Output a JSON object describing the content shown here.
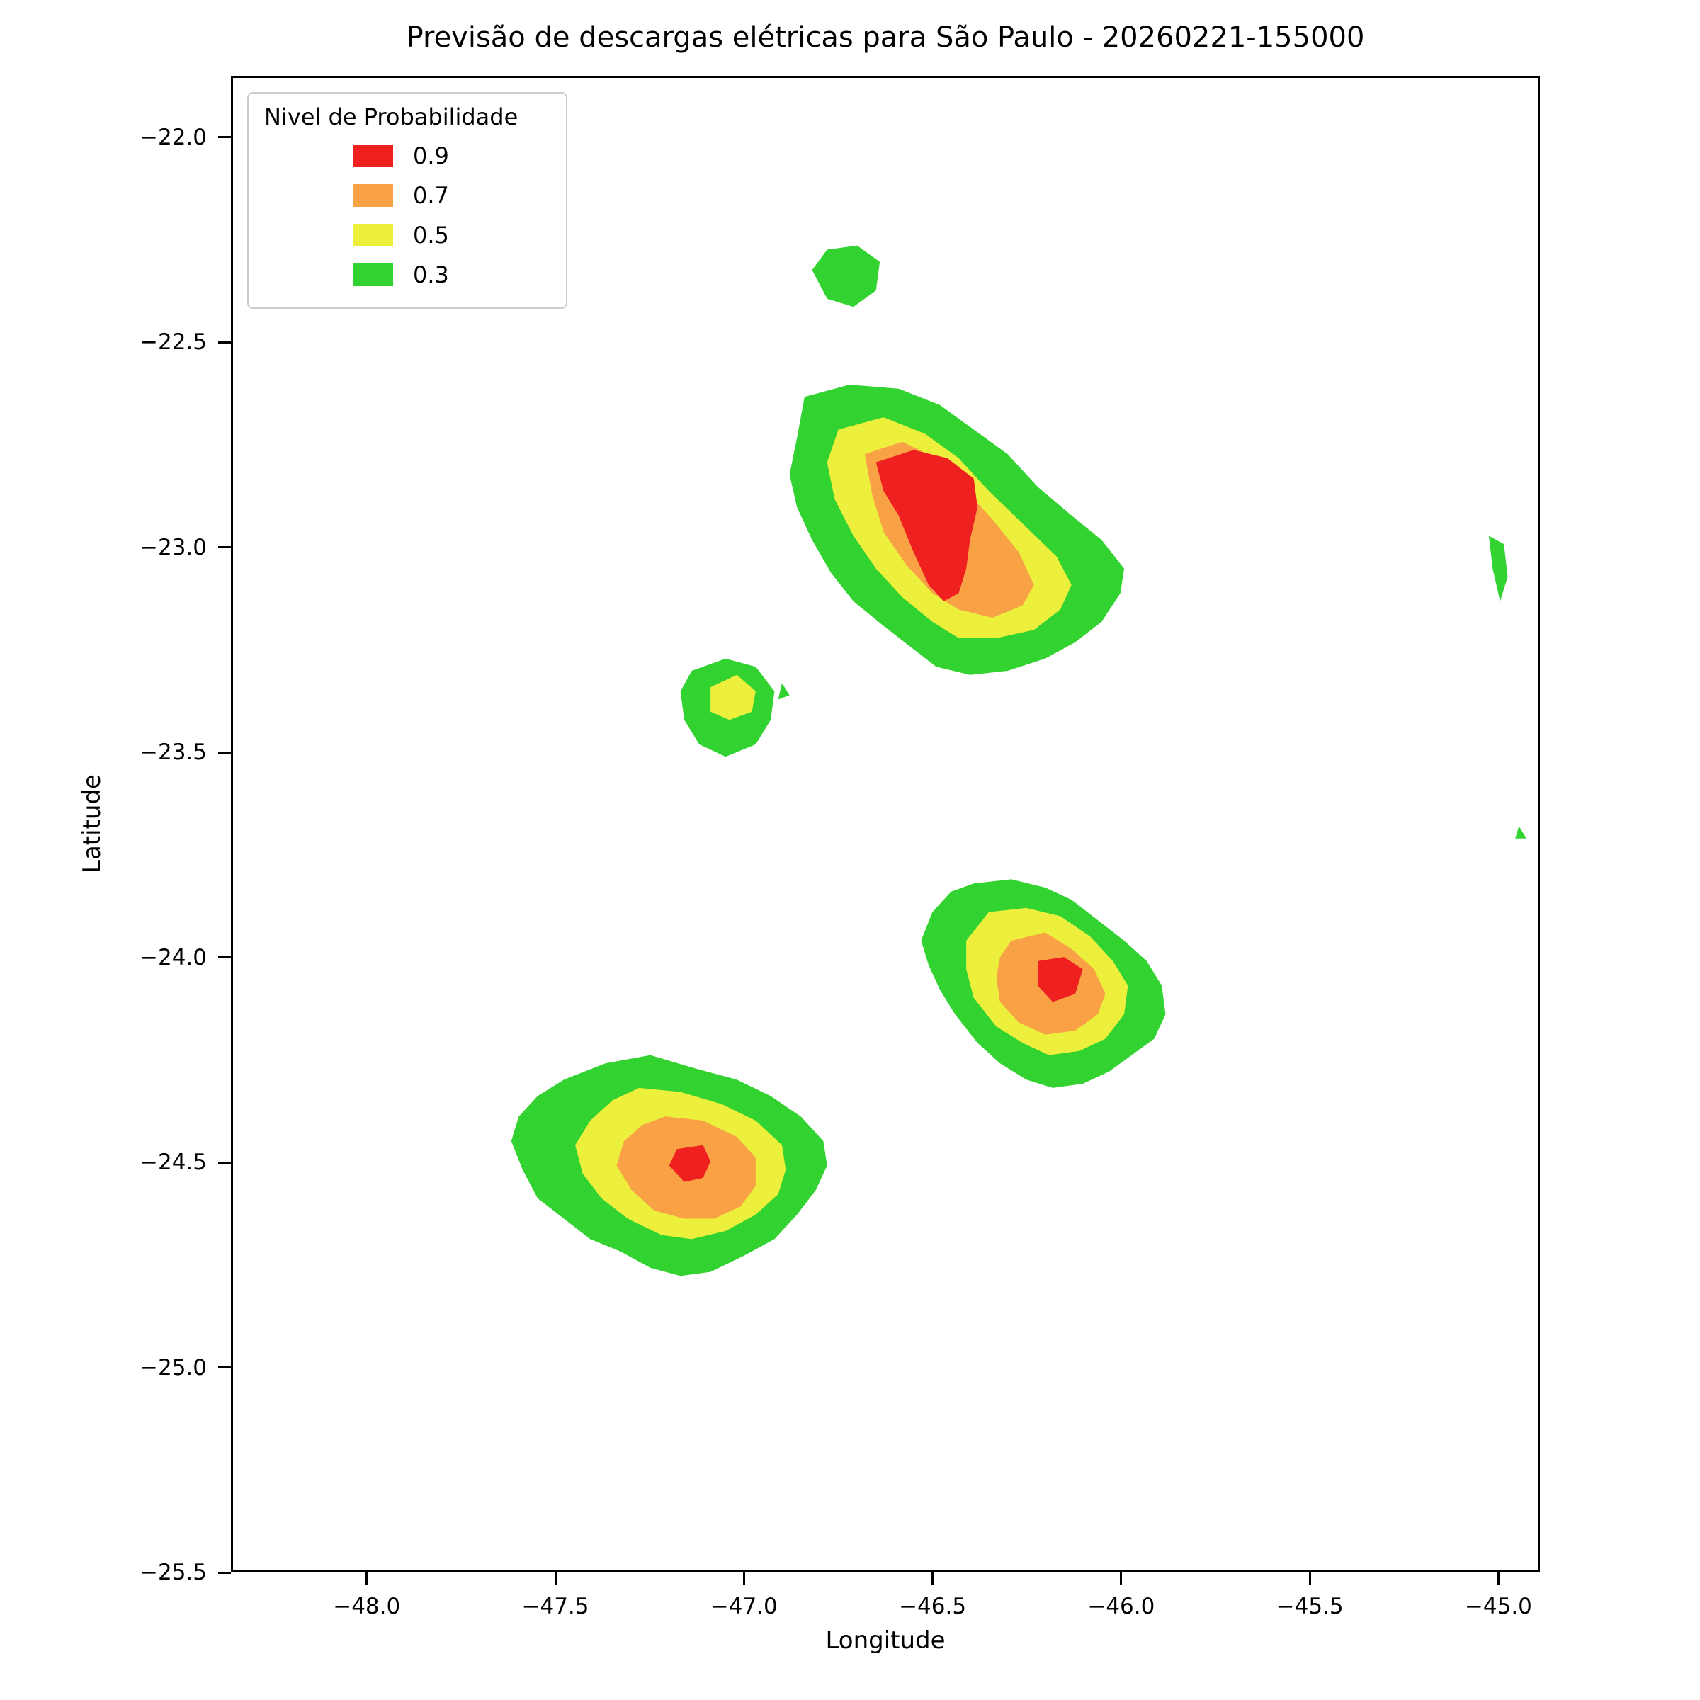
{
  "chart_data": {
    "type": "filled_contour_map",
    "title": "Previsão de descargas elétricas para São Paulo - 20260221-155000",
    "xlabel": "Longitude",
    "ylabel": "Latitude",
    "xlim": [
      -48.36,
      -44.89
    ],
    "ylim": [
      -25.5,
      -21.85
    ],
    "xticks": [
      -48.0,
      -47.5,
      -47.0,
      -46.5,
      -46.0,
      -45.5,
      -45.0
    ],
    "xtick_labels": [
      "−48.0",
      "−47.5",
      "−47.0",
      "−46.5",
      "−46.0",
      "−45.5",
      "−45.0"
    ],
    "yticks": [
      -22.0,
      -22.5,
      -23.0,
      -23.5,
      -24.0,
      -24.5,
      -25.0,
      -25.5
    ],
    "ytick_labels": [
      "−22.0",
      "−22.5",
      "−23.0",
      "−23.5",
      "−24.0",
      "−24.5",
      "−25.0",
      "−25.5"
    ],
    "grid": false,
    "legend": {
      "title": "Nivel de Probabilidade",
      "position": "upper left",
      "entries": [
        {
          "label": "0.9",
          "level": "0.9"
        },
        {
          "label": "0.7",
          "level": "0.7"
        },
        {
          "label": "0.5",
          "level": "0.5"
        },
        {
          "label": "0.3",
          "level": "0.3"
        }
      ]
    },
    "level_colors": {
      "0.9": "#ee2020",
      "0.7": "#f8a145",
      "0.5": "#ecf03c",
      "0.3": "#32d330"
    },
    "regions": [
      {
        "name": "north-small-cell",
        "level": "0.3",
        "points": [
          [
            -46.82,
            -22.32
          ],
          [
            -46.78,
            -22.27
          ],
          [
            -46.7,
            -22.26
          ],
          [
            -46.64,
            -22.3
          ],
          [
            -46.65,
            -22.37
          ],
          [
            -46.71,
            -22.41
          ],
          [
            -46.78,
            -22.39
          ]
        ]
      },
      {
        "name": "main-cell",
        "level": "0.3",
        "points": [
          [
            -46.84,
            -22.63
          ],
          [
            -46.72,
            -22.6
          ],
          [
            -46.59,
            -22.61
          ],
          [
            -46.48,
            -22.65
          ],
          [
            -46.39,
            -22.71
          ],
          [
            -46.3,
            -22.77
          ],
          [
            -46.22,
            -22.85
          ],
          [
            -46.13,
            -22.92
          ],
          [
            -46.05,
            -22.98
          ],
          [
            -45.99,
            -23.05
          ],
          [
            -46.0,
            -23.11
          ],
          [
            -46.05,
            -23.18
          ],
          [
            -46.12,
            -23.23
          ],
          [
            -46.2,
            -23.27
          ],
          [
            -46.3,
            -23.3
          ],
          [
            -46.4,
            -23.31
          ],
          [
            -46.49,
            -23.29
          ],
          [
            -46.56,
            -23.24
          ],
          [
            -46.63,
            -23.19
          ],
          [
            -46.71,
            -23.13
          ],
          [
            -46.77,
            -23.06
          ],
          [
            -46.82,
            -22.98
          ],
          [
            -46.86,
            -22.9
          ],
          [
            -46.88,
            -22.82
          ],
          [
            -46.86,
            -22.73
          ]
        ]
      },
      {
        "name": "main-cell",
        "level": "0.5",
        "points": [
          [
            -46.75,
            -22.71
          ],
          [
            -46.63,
            -22.68
          ],
          [
            -46.52,
            -22.72
          ],
          [
            -46.43,
            -22.78
          ],
          [
            -46.35,
            -22.86
          ],
          [
            -46.26,
            -22.94
          ],
          [
            -46.17,
            -23.02
          ],
          [
            -46.13,
            -23.09
          ],
          [
            -46.16,
            -23.15
          ],
          [
            -46.23,
            -23.2
          ],
          [
            -46.33,
            -23.22
          ],
          [
            -46.43,
            -23.22
          ],
          [
            -46.5,
            -23.18
          ],
          [
            -46.58,
            -23.12
          ],
          [
            -46.65,
            -23.05
          ],
          [
            -46.71,
            -22.97
          ],
          [
            -46.76,
            -22.88
          ],
          [
            -46.78,
            -22.79
          ]
        ]
      },
      {
        "name": "main-cell",
        "level": "0.7",
        "points": [
          [
            -46.68,
            -22.77
          ],
          [
            -46.58,
            -22.74
          ],
          [
            -46.49,
            -22.78
          ],
          [
            -46.41,
            -22.86
          ],
          [
            -46.34,
            -22.93
          ],
          [
            -46.27,
            -23.01
          ],
          [
            -46.23,
            -23.09
          ],
          [
            -46.26,
            -23.14
          ],
          [
            -46.34,
            -23.17
          ],
          [
            -46.43,
            -23.15
          ],
          [
            -46.5,
            -23.11
          ],
          [
            -46.57,
            -23.04
          ],
          [
            -46.63,
            -22.96
          ],
          [
            -46.66,
            -22.87
          ]
        ]
      },
      {
        "name": "main-cell",
        "level": "0.9",
        "points": [
          [
            -46.65,
            -22.79
          ],
          [
            -46.55,
            -22.76
          ],
          [
            -46.46,
            -22.78
          ],
          [
            -46.39,
            -22.83
          ],
          [
            -46.38,
            -22.9
          ],
          [
            -46.4,
            -22.98
          ],
          [
            -46.41,
            -23.05
          ],
          [
            -46.43,
            -23.11
          ],
          [
            -46.47,
            -23.13
          ],
          [
            -46.51,
            -23.09
          ],
          [
            -46.55,
            -23.01
          ],
          [
            -46.59,
            -22.92
          ],
          [
            -46.63,
            -22.86
          ]
        ]
      },
      {
        "name": "west-small-cell",
        "level": "0.3",
        "points": [
          [
            -47.14,
            -23.3
          ],
          [
            -47.05,
            -23.27
          ],
          [
            -46.97,
            -23.29
          ],
          [
            -46.92,
            -23.35
          ],
          [
            -46.93,
            -23.42
          ],
          [
            -46.97,
            -23.48
          ],
          [
            -47.05,
            -23.51
          ],
          [
            -47.12,
            -23.48
          ],
          [
            -47.16,
            -23.42
          ],
          [
            -47.17,
            -23.35
          ]
        ]
      },
      {
        "name": "west-small-cell",
        "level": "0.5",
        "points": [
          [
            -47.09,
            -23.34
          ],
          [
            -47.02,
            -23.31
          ],
          [
            -46.97,
            -23.35
          ],
          [
            -46.98,
            -23.4
          ],
          [
            -47.04,
            -23.42
          ],
          [
            -47.09,
            -23.4
          ]
        ]
      },
      {
        "name": "west-speck",
        "level": "0.3",
        "points": [
          [
            -46.9,
            -23.33
          ],
          [
            -46.88,
            -23.36
          ],
          [
            -46.91,
            -23.37
          ]
        ]
      },
      {
        "name": "east-sliver",
        "level": "0.3",
        "points": [
          [
            -45.02,
            -22.97
          ],
          [
            -44.98,
            -22.99
          ],
          [
            -44.97,
            -23.07
          ],
          [
            -44.99,
            -23.13
          ],
          [
            -45.01,
            -23.05
          ]
        ]
      },
      {
        "name": "east-speck",
        "level": "0.3",
        "points": [
          [
            -44.94,
            -23.68
          ],
          [
            -44.92,
            -23.71
          ],
          [
            -44.95,
            -23.71
          ]
        ]
      },
      {
        "name": "central-cell",
        "level": "0.3",
        "points": [
          [
            -46.39,
            -23.82
          ],
          [
            -46.29,
            -23.81
          ],
          [
            -46.2,
            -23.83
          ],
          [
            -46.13,
            -23.86
          ],
          [
            -46.06,
            -23.91
          ],
          [
            -45.99,
            -23.96
          ],
          [
            -45.93,
            -24.01
          ],
          [
            -45.89,
            -24.07
          ],
          [
            -45.88,
            -24.14
          ],
          [
            -45.91,
            -24.2
          ],
          [
            -45.97,
            -24.24
          ],
          [
            -46.03,
            -24.28
          ],
          [
            -46.1,
            -24.31
          ],
          [
            -46.18,
            -24.32
          ],
          [
            -46.25,
            -24.3
          ],
          [
            -46.32,
            -24.26
          ],
          [
            -46.38,
            -24.21
          ],
          [
            -46.44,
            -24.14
          ],
          [
            -46.48,
            -24.08
          ],
          [
            -46.51,
            -24.02
          ],
          [
            -46.53,
            -23.96
          ],
          [
            -46.5,
            -23.89
          ],
          [
            -46.45,
            -23.84
          ]
        ]
      },
      {
        "name": "central-cell",
        "level": "0.5",
        "points": [
          [
            -46.35,
            -23.89
          ],
          [
            -46.25,
            -23.88
          ],
          [
            -46.16,
            -23.9
          ],
          [
            -46.08,
            -23.95
          ],
          [
            -46.02,
            -24.01
          ],
          [
            -45.98,
            -24.07
          ],
          [
            -45.99,
            -24.14
          ],
          [
            -46.04,
            -24.2
          ],
          [
            -46.11,
            -24.23
          ],
          [
            -46.19,
            -24.24
          ],
          [
            -46.26,
            -24.21
          ],
          [
            -46.33,
            -24.17
          ],
          [
            -46.39,
            -24.1
          ],
          [
            -46.41,
            -24.03
          ],
          [
            -46.41,
            -23.96
          ]
        ]
      },
      {
        "name": "central-cell",
        "level": "0.7",
        "points": [
          [
            -46.29,
            -23.96
          ],
          [
            -46.2,
            -23.94
          ],
          [
            -46.13,
            -23.98
          ],
          [
            -46.07,
            -24.03
          ],
          [
            -46.04,
            -24.09
          ],
          [
            -46.06,
            -24.14
          ],
          [
            -46.12,
            -24.18
          ],
          [
            -46.2,
            -24.19
          ],
          [
            -46.27,
            -24.16
          ],
          [
            -46.32,
            -24.11
          ],
          [
            -46.33,
            -24.05
          ],
          [
            -46.32,
            -24.0
          ]
        ]
      },
      {
        "name": "central-cell",
        "level": "0.9",
        "points": [
          [
            -46.22,
            -24.01
          ],
          [
            -46.15,
            -24.0
          ],
          [
            -46.1,
            -24.03
          ],
          [
            -46.12,
            -24.09
          ],
          [
            -46.18,
            -24.11
          ],
          [
            -46.22,
            -24.07
          ]
        ]
      },
      {
        "name": "southwest-cell",
        "level": "0.3",
        "points": [
          [
            -47.37,
            -24.26
          ],
          [
            -47.25,
            -24.24
          ],
          [
            -47.14,
            -24.27
          ],
          [
            -47.02,
            -24.3
          ],
          [
            -46.93,
            -24.34
          ],
          [
            -46.85,
            -24.39
          ],
          [
            -46.79,
            -24.45
          ],
          [
            -46.78,
            -24.51
          ],
          [
            -46.81,
            -24.57
          ],
          [
            -46.86,
            -24.63
          ],
          [
            -46.92,
            -24.69
          ],
          [
            -47.0,
            -24.73
          ],
          [
            -47.09,
            -24.77
          ],
          [
            -47.17,
            -24.78
          ],
          [
            -47.25,
            -24.76
          ],
          [
            -47.33,
            -24.72
          ],
          [
            -47.41,
            -24.69
          ],
          [
            -47.48,
            -24.64
          ],
          [
            -47.55,
            -24.59
          ],
          [
            -47.59,
            -24.52
          ],
          [
            -47.62,
            -24.45
          ],
          [
            -47.6,
            -24.39
          ],
          [
            -47.55,
            -24.34
          ],
          [
            -47.48,
            -24.3
          ]
        ]
      },
      {
        "name": "southwest-cell",
        "level": "0.5",
        "points": [
          [
            -47.28,
            -24.32
          ],
          [
            -47.17,
            -24.33
          ],
          [
            -47.06,
            -24.36
          ],
          [
            -46.97,
            -24.4
          ],
          [
            -46.9,
            -24.46
          ],
          [
            -46.89,
            -24.52
          ],
          [
            -46.91,
            -24.58
          ],
          [
            -46.97,
            -24.63
          ],
          [
            -47.05,
            -24.67
          ],
          [
            -47.14,
            -24.69
          ],
          [
            -47.22,
            -24.68
          ],
          [
            -47.31,
            -24.64
          ],
          [
            -47.38,
            -24.59
          ],
          [
            -47.43,
            -24.53
          ],
          [
            -47.45,
            -24.46
          ],
          [
            -47.41,
            -24.4
          ],
          [
            -47.35,
            -24.35
          ]
        ]
      },
      {
        "name": "southwest-cell",
        "level": "0.7",
        "points": [
          [
            -47.21,
            -24.39
          ],
          [
            -47.11,
            -24.4
          ],
          [
            -47.02,
            -24.44
          ],
          [
            -46.97,
            -24.49
          ],
          [
            -46.97,
            -24.56
          ],
          [
            -47.01,
            -24.61
          ],
          [
            -47.08,
            -24.64
          ],
          [
            -47.16,
            -24.64
          ],
          [
            -47.24,
            -24.62
          ],
          [
            -47.3,
            -24.57
          ],
          [
            -47.34,
            -24.51
          ],
          [
            -47.32,
            -24.45
          ],
          [
            -47.27,
            -24.41
          ]
        ]
      },
      {
        "name": "southwest-cell",
        "level": "0.9",
        "points": [
          [
            -47.18,
            -24.47
          ],
          [
            -47.11,
            -24.46
          ],
          [
            -47.09,
            -24.5
          ],
          [
            -47.11,
            -24.54
          ],
          [
            -47.16,
            -24.55
          ],
          [
            -47.2,
            -24.51
          ]
        ]
      },
      {
        "name": "southwest-speck",
        "level": "0.3",
        "points": [
          [
            -46.89,
            -24.37
          ],
          [
            -46.86,
            -24.43
          ],
          [
            -46.91,
            -24.43
          ]
        ]
      }
    ]
  }
}
